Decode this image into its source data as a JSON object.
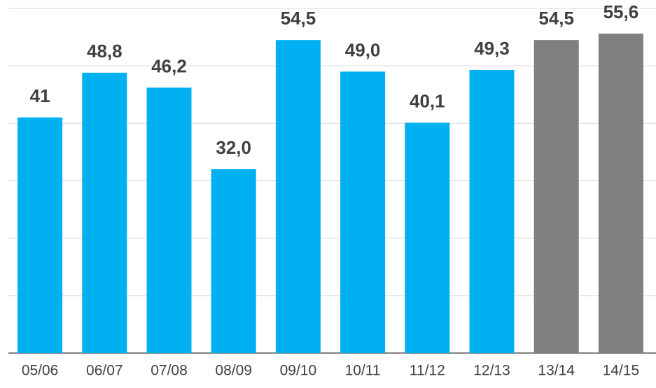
{
  "chart_data": {
    "type": "bar",
    "categories": [
      "05/06",
      "06/07",
      "07/08",
      "08/09",
      "09/10",
      "10/11",
      "11/12",
      "12/13",
      "13/14",
      "14/15"
    ],
    "values": [
      41,
      48.8,
      46.2,
      32.0,
      54.5,
      49.0,
      40.1,
      49.3,
      54.5,
      55.6
    ],
    "value_labels": [
      "41",
      "48,8",
      "46,2",
      "32,0",
      "54,5",
      "49,0",
      "40,1",
      "49,3",
      "54,5",
      "55,6"
    ],
    "colors": [
      "#00b0f0",
      "#00b0f0",
      "#00b0f0",
      "#00b0f0",
      "#00b0f0",
      "#00b0f0",
      "#00b0f0",
      "#00b0f0",
      "#7f7f7f",
      "#7f7f7f"
    ],
    "ylim": [
      0,
      60
    ],
    "yticks": [
      0,
      10,
      20,
      30,
      40,
      50,
      60
    ],
    "grid": true
  }
}
